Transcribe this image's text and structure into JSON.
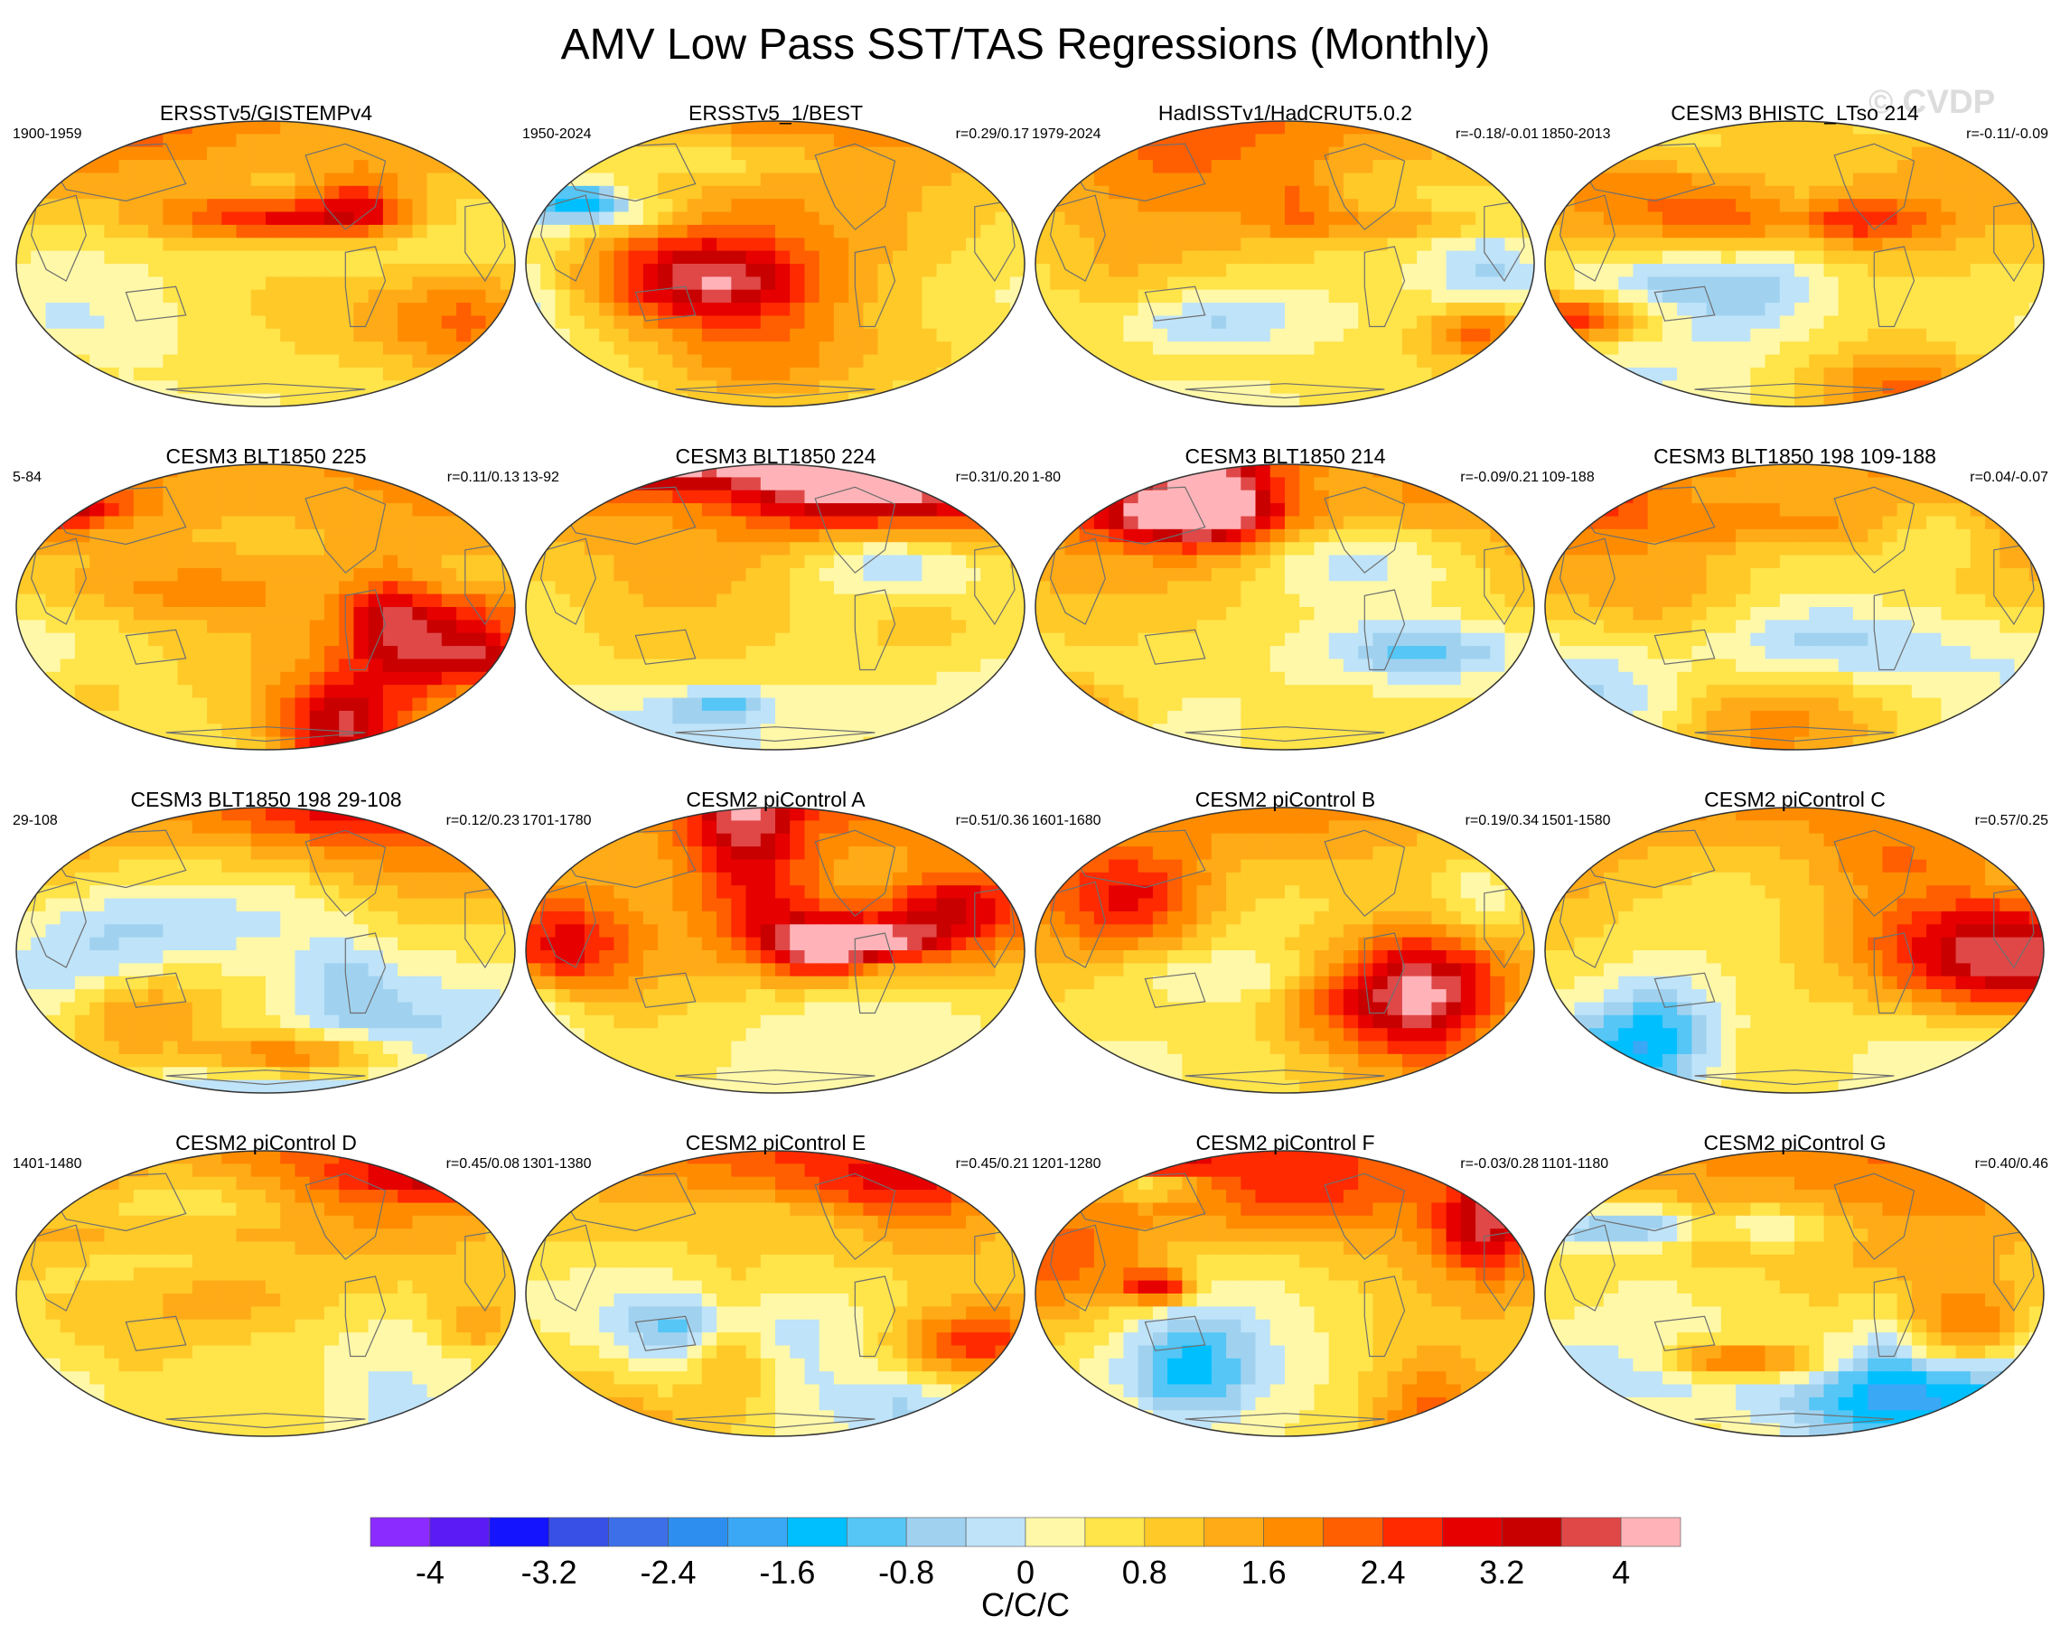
{
  "title": "AMV Low Pass SST/TAS Regressions (Monthly)",
  "watermark": "© CVDP",
  "colors": {
    "scale": [
      "#8c2bff",
      "#5a1bf5",
      "#1414ff",
      "#3850e6",
      "#3c6fe8",
      "#2d8ef0",
      "#3aa8f5",
      "#00bfff",
      "#55c6f5",
      "#a0d2f0",
      "#bfe3f8",
      "#fff8a8",
      "#ffe44a",
      "#ffc928",
      "#ffab18",
      "#ff8c00",
      "#ff5f00",
      "#ff2a00",
      "#e60000",
      "#c80000",
      "#e04848",
      "#ffb3b8"
    ]
  },
  "chart_data": {
    "type": "heatmap",
    "title": "AMV Low Pass SST/TAS Regressions (Monthly)",
    "projection": "Robinson-like global map",
    "panels": [
      {
        "title": "ERSSTv5/GISTEMPv4",
        "period": "1900-1959",
        "corr": ""
      },
      {
        "title": "ERSSTv5_1/BEST",
        "period": "1950-2024",
        "corr": "r=0.29/0.17"
      },
      {
        "title": "HadISSTv1/HadCRUT5.0.2",
        "period": "1979-2024",
        "corr": "r=-0.18/-0.01"
      },
      {
        "title": "CESM3 BHISTC_LTso 214",
        "period": "1850-2013",
        "corr": "r=-0.11/-0.09"
      },
      {
        "title": "CESM3 BLT1850 225",
        "period": "5-84",
        "corr": "r=0.11/0.13"
      },
      {
        "title": "CESM3 BLT1850 224",
        "period": "13-92",
        "corr": "r=0.31/0.20"
      },
      {
        "title": "CESM3 BLT1850 214",
        "period": "1-80",
        "corr": "r=-0.09/0.21"
      },
      {
        "title": "CESM3 BLT1850 198 109-188",
        "period": "109-188",
        "corr": "r=0.04/-0.07"
      },
      {
        "title": "CESM3 BLT1850 198 29-108",
        "period": "29-108",
        "corr": "r=0.12/0.23"
      },
      {
        "title": "CESM2 piControl A",
        "period": "1701-1780",
        "corr": "r=0.51/0.36"
      },
      {
        "title": "CESM2 piControl B",
        "period": "1601-1680",
        "corr": "r=0.19/0.34"
      },
      {
        "title": "CESM2 piControl C",
        "period": "1501-1580",
        "corr": "r=0.57/0.25"
      },
      {
        "title": "CESM2 piControl D",
        "period": "1401-1480",
        "corr": "r=0.45/0.08"
      },
      {
        "title": "CESM2 piControl E",
        "period": "1301-1380",
        "corr": "r=0.45/0.21"
      },
      {
        "title": "CESM2 piControl F",
        "period": "1201-1280",
        "corr": "r=-0.03/0.28"
      },
      {
        "title": "CESM2 piControl G",
        "period": "1101-1180",
        "corr": "r=0.40/0.46"
      }
    ],
    "colorbar": {
      "levels": [
        -4.4,
        -4,
        -3.6,
        -3.2,
        -2.8,
        -2.4,
        -2,
        -1.6,
        -1.2,
        -0.8,
        -0.4,
        0,
        0.4,
        0.8,
        1.2,
        1.6,
        2,
        2.4,
        2.8,
        3.2,
        3.6,
        4,
        4.4
      ],
      "tick_values": [
        -4,
        -3.2,
        -2.4,
        -1.6,
        -0.8,
        0,
        0.8,
        1.6,
        2.4,
        3.2,
        4
      ],
      "tick_labels": [
        "-4",
        "-3.2",
        "-2.4",
        "-1.6",
        "-0.8",
        "0",
        "0.8",
        "1.6",
        "2.4",
        "3.2",
        "4"
      ],
      "units": "C/C/C",
      "range": [
        -4.4,
        4.4
      ]
    }
  }
}
